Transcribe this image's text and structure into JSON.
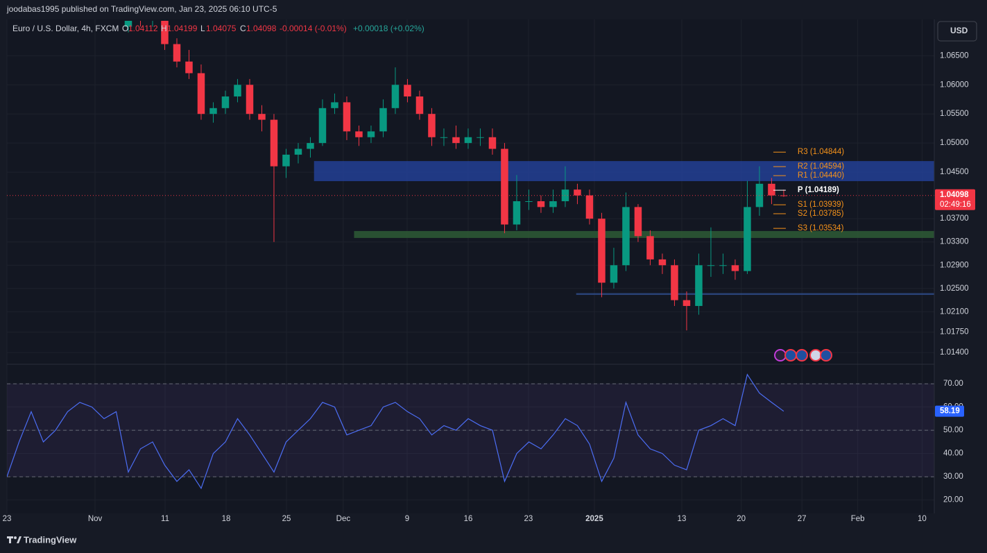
{
  "header": {
    "published": "joodabas1995 published on TradingView.com, Jan 23, 2025 06:10 UTC-5",
    "symbol": "Euro / U.S. Dollar, 4h, FXCM",
    "o_label": "O",
    "o": "1.04112",
    "h_label": "H",
    "h": "1.04199",
    "l_label": "L",
    "l": "1.04075",
    "c_label": "C",
    "c": "1.04098",
    "change": "-0.00014 (-0.01%)",
    "change2": "+0.00018 (+0.02%)",
    "currency": "USD",
    "countdown": "02:49:16",
    "brand": "TradingView"
  },
  "chart_data": [
    {
      "type": "candlestick",
      "up_color": "#089981",
      "down_color": "#f23645",
      "x": [
        10,
        11,
        12,
        13,
        14,
        15,
        16,
        17,
        18,
        19,
        20,
        21,
        22,
        23,
        24,
        25,
        26,
        27,
        28,
        29,
        30,
        31,
        32,
        33,
        34,
        35,
        36,
        37,
        38,
        39,
        40,
        41,
        42,
        43,
        44,
        45,
        46,
        47,
        48,
        49,
        50,
        51,
        52,
        53,
        54,
        55,
        56,
        57,
        58,
        59,
        60,
        61,
        62,
        63,
        64
      ],
      "open": [
        1.07,
        1.072,
        1.071,
        1.072,
        1.067,
        1.064,
        1.062,
        1.055,
        1.056,
        1.058,
        1.06,
        1.055,
        1.054,
        1.046,
        1.048,
        1.049,
        1.05,
        1.056,
        1.057,
        1.052,
        1.051,
        1.052,
        1.056,
        1.06,
        1.058,
        1.055,
        1.051,
        1.051,
        1.05,
        1.051,
        1.051,
        1.049,
        1.036,
        1.04,
        1.04,
        1.039,
        1.04,
        1.042,
        1.041,
        1.037,
        1.026,
        1.029,
        1.039,
        1.034,
        1.03,
        1.029,
        1.023,
        1.022,
        1.029,
        1.029,
        1.029,
        1.028,
        1.039,
        1.043,
        1.041
      ],
      "high": [
        1.0735,
        1.0735,
        1.073,
        1.0735,
        1.068,
        1.066,
        1.0635,
        1.057,
        1.059,
        1.061,
        1.061,
        1.0565,
        1.055,
        1.049,
        1.05,
        1.051,
        1.0575,
        1.0585,
        1.058,
        1.053,
        1.053,
        1.0575,
        1.063,
        1.061,
        1.059,
        1.056,
        1.0525,
        1.053,
        1.0525,
        1.0525,
        1.0525,
        1.05,
        1.0445,
        1.042,
        1.041,
        1.042,
        1.046,
        1.043,
        1.042,
        1.038,
        1.032,
        1.0415,
        1.0395,
        1.035,
        1.031,
        1.03,
        1.0245,
        1.031,
        1.0355,
        1.031,
        1.03,
        1.0435,
        1.046,
        1.044,
        1.04199
      ],
      "low": [
        1.069,
        1.07,
        1.07,
        1.066,
        1.063,
        1.061,
        1.054,
        1.0535,
        1.055,
        1.057,
        1.054,
        1.052,
        1.033,
        1.044,
        1.0465,
        1.0475,
        1.0495,
        1.055,
        1.0505,
        1.0495,
        1.05,
        1.051,
        1.055,
        1.057,
        1.054,
        1.0495,
        1.0495,
        1.049,
        1.049,
        1.0495,
        1.048,
        1.0345,
        1.035,
        1.0385,
        1.038,
        1.038,
        1.039,
        1.0395,
        1.036,
        1.0235,
        1.025,
        1.028,
        1.033,
        1.029,
        1.0275,
        1.022,
        1.0178,
        1.0205,
        1.027,
        1.0275,
        1.0265,
        1.0275,
        1.0375,
        1.0395,
        1.04075
      ],
      "close": [
        1.072,
        1.071,
        1.072,
        1.067,
        1.064,
        1.062,
        1.055,
        1.056,
        1.058,
        1.06,
        1.055,
        1.054,
        1.046,
        1.048,
        1.049,
        1.05,
        1.056,
        1.057,
        1.052,
        1.051,
        1.052,
        1.056,
        1.06,
        1.058,
        1.055,
        1.051,
        1.051,
        1.05,
        1.051,
        1.051,
        1.049,
        1.036,
        1.04,
        1.04,
        1.039,
        1.04,
        1.042,
        1.041,
        1.037,
        1.026,
        1.029,
        1.039,
        1.034,
        1.03,
        1.029,
        1.023,
        1.022,
        1.029,
        1.029,
        1.029,
        1.028,
        1.039,
        1.043,
        1.041,
        1.04098
      ],
      "xlim": [
        0,
        76.29
      ],
      "ylim": [
        1.0121,
        1.071
      ],
      "yticks": [
        {
          "value": 1.065,
          "label": "1.06500"
        },
        {
          "value": 1.06,
          "label": "1.06000"
        },
        {
          "value": 1.055,
          "label": "1.05500"
        },
        {
          "value": 1.05,
          "label": "1.05000"
        },
        {
          "value": 1.045,
          "label": "1.04500"
        },
        {
          "value": 1.037,
          "label": "1.03700"
        },
        {
          "value": 1.033,
          "label": "1.03300"
        },
        {
          "value": 1.029,
          "label": "1.02900"
        },
        {
          "value": 1.025,
          "label": "1.02500"
        },
        {
          "value": 1.021,
          "label": "1.02100"
        },
        {
          "value": 1.0175,
          "label": "1.01750"
        },
        {
          "value": 1.014,
          "label": "1.01400"
        }
      ],
      "xticks": [
        {
          "value": 0,
          "label": "23"
        },
        {
          "value": 7.26,
          "label": "Nov"
        },
        {
          "value": 13.03,
          "label": "11"
        },
        {
          "value": 18.06,
          "label": "18"
        },
        {
          "value": 23.03,
          "label": "25"
        },
        {
          "value": 27.71,
          "label": "Dec"
        },
        {
          "value": 32.97,
          "label": "9"
        },
        {
          "value": 38.0,
          "label": "16"
        },
        {
          "value": 42.97,
          "label": "23"
        },
        {
          "value": 48.4,
          "label": "2025"
        },
        {
          "value": 55.6,
          "label": "13"
        },
        {
          "value": 60.5,
          "label": "20"
        },
        {
          "value": 65.5,
          "label": "27"
        },
        {
          "value": 70.1,
          "label": "Feb"
        },
        {
          "value": 75.4,
          "label": "10"
        }
      ],
      "zones": [
        {
          "from": 1.04345,
          "to": 1.0469,
          "start": 25.3,
          "color": "#233f94"
        },
        {
          "from": 1.03369,
          "to": 1.03488,
          "start": 28.6,
          "color": "#2e5a35"
        },
        {
          "from": 1.0239,
          "to": 1.0242,
          "start": 46.9,
          "color": "#2e4a86"
        }
      ],
      "pivots": [
        {
          "label": "R3 (1.04844)",
          "value": 1.04844
        },
        {
          "label": "R2 (1.04594)",
          "value": 1.04594
        },
        {
          "label": "R1 (1.04440)",
          "value": 1.0444
        },
        {
          "label": "P (1.04189)",
          "value": 1.04189
        },
        {
          "label": "S1 (1.03939)",
          "value": 1.03939
        },
        {
          "label": "S2 (1.03785)",
          "value": 1.03785
        },
        {
          "label": "S3 (1.03534)",
          "value": 1.03534
        }
      ]
    },
    {
      "type": "line",
      "color": "#4c6ef5",
      "x": [
        0,
        1,
        2,
        3,
        4,
        5,
        6,
        7,
        8,
        9,
        10,
        11,
        12,
        13,
        14,
        15,
        16,
        17,
        18,
        19,
        20,
        21,
        22,
        23,
        24,
        25,
        26,
        27,
        28,
        29,
        30,
        31,
        32,
        33,
        34,
        35,
        36,
        37,
        38,
        39,
        40,
        41,
        42,
        43,
        44,
        45,
        46,
        47,
        48,
        49,
        50,
        51,
        52,
        53,
        54,
        55,
        56,
        57,
        58,
        59,
        60,
        61,
        62,
        63,
        64
      ],
      "values": [
        30,
        45,
        58,
        45,
        50,
        58,
        62,
        60,
        55,
        58,
        32,
        42,
        45,
        35,
        28,
        33,
        25,
        40,
        45,
        55,
        48,
        40,
        32,
        45,
        50,
        55,
        62,
        60,
        48,
        50,
        52,
        60,
        62,
        58,
        55,
        48,
        52,
        50,
        55,
        52,
        50,
        28,
        40,
        45,
        42,
        48,
        55,
        52,
        44,
        28,
        38,
        62,
        48,
        42,
        40,
        35,
        33,
        50,
        52,
        55,
        52,
        74,
        66,
        62,
        58.19
      ],
      "xlim": [
        0,
        76.29
      ],
      "ylim": [
        15.7,
        77.5
      ],
      "yticks": [
        {
          "value": 70,
          "label": "70.00"
        },
        {
          "value": 60,
          "label": "60.00"
        },
        {
          "value": 50,
          "label": "50.00"
        },
        {
          "value": 40,
          "label": "40.00"
        },
        {
          "value": 30,
          "label": "30.00"
        },
        {
          "value": 20,
          "label": "20.00"
        }
      ],
      "bands": [
        70,
        50,
        30
      ]
    }
  ]
}
